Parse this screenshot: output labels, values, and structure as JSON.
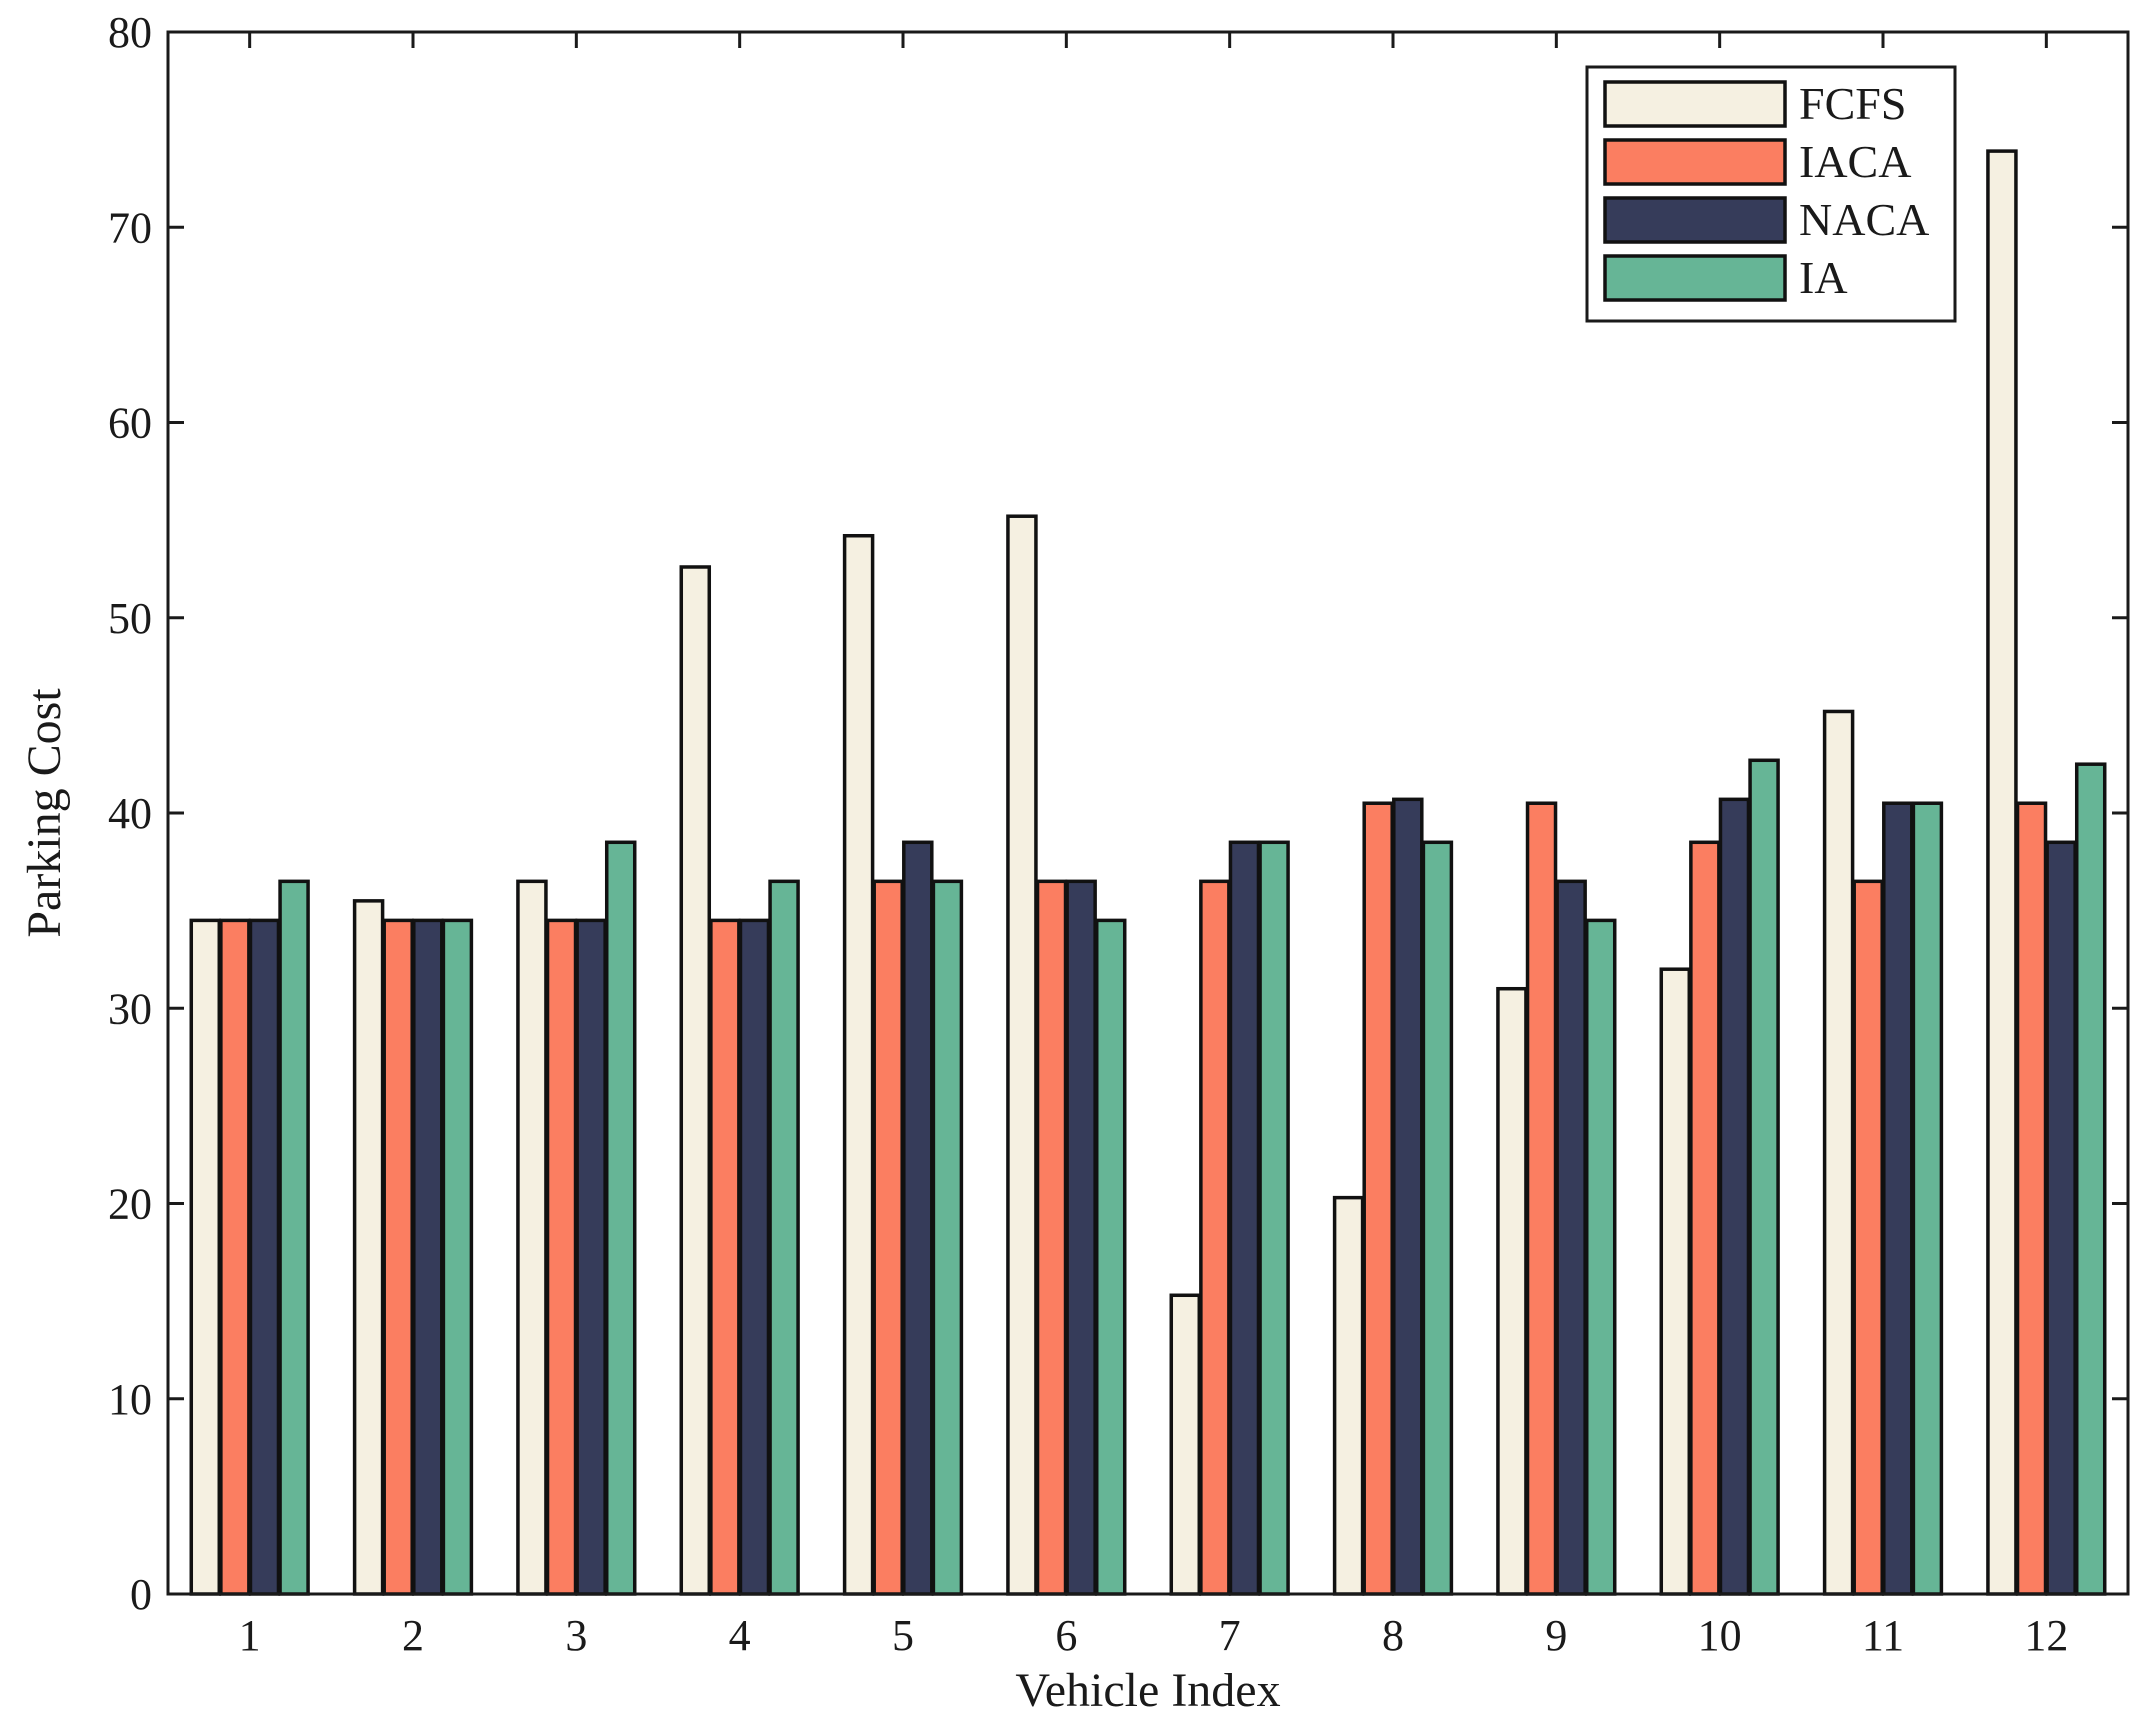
{
  "chart_data": {
    "type": "bar",
    "title": "",
    "xlabel": "Vehicle Index",
    "ylabel": "Parking Cost",
    "ylim": [
      0,
      80
    ],
    "yticks": [
      "0",
      "10",
      "20",
      "30",
      "40",
      "50",
      "60",
      "70",
      "80"
    ],
    "categories": [
      "1",
      "2",
      "3",
      "4",
      "5",
      "6",
      "7",
      "8",
      "9",
      "10",
      "11",
      "12"
    ],
    "legend_position": "top-right",
    "series": [
      {
        "name": "FCFS",
        "color": "#f5f0e1",
        "values": [
          34.5,
          35.5,
          36.5,
          52.6,
          54.2,
          55.2,
          15.3,
          20.3,
          31.0,
          32.0,
          45.2,
          73.9
        ]
      },
      {
        "name": "IACA",
        "color": "#fb7e61",
        "values": [
          34.5,
          34.5,
          34.5,
          34.5,
          36.5,
          36.5,
          36.5,
          40.5,
          40.5,
          38.5,
          36.5,
          40.5
        ]
      },
      {
        "name": "NACA",
        "color": "#363c5a",
        "values": [
          34.5,
          34.5,
          34.5,
          34.5,
          38.5,
          36.5,
          38.5,
          40.7,
          36.5,
          40.7,
          40.5,
          38.5
        ]
      },
      {
        "name": "IA",
        "color": "#66b596",
        "values": [
          36.5,
          34.5,
          38.5,
          36.5,
          36.5,
          34.5,
          38.5,
          38.5,
          34.5,
          42.7,
          40.5,
          42.5
        ]
      }
    ]
  }
}
